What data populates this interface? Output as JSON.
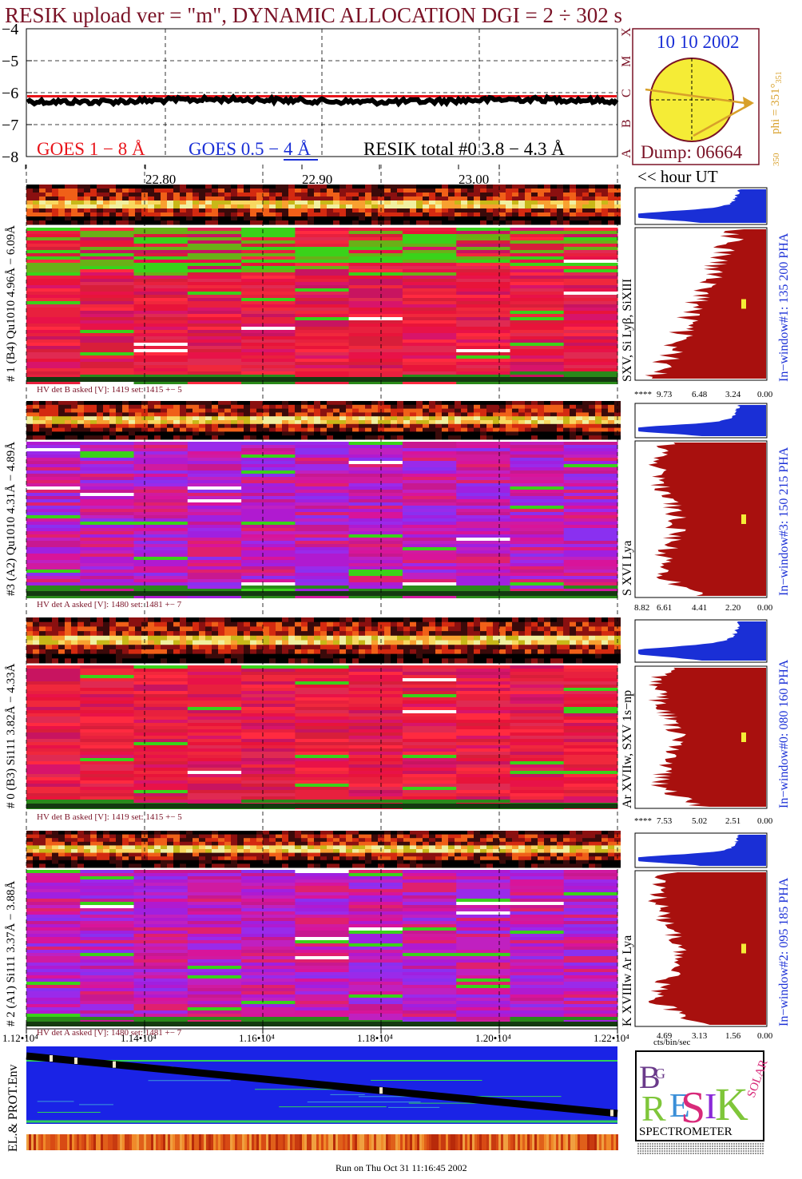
{
  "header": {
    "title": "RESIK upload ver = \"m\", DYNAMIC ALLOCATION  DGI =   2 ÷ 302 s"
  },
  "lightcurve": {
    "y_ticks": [
      "−4",
      "−5",
      "−6",
      "−7",
      "−8"
    ],
    "legend": {
      "goes_long": "GOES 1 − 8 Å",
      "goes_short": "GOES 0.5 − 4 Å",
      "resik": "RESIK total #0  3.8 − 4.3 Å"
    },
    "colors": {
      "goes_long": "#e8141a",
      "goes_short": "#1a2fd6",
      "resik": "#000000",
      "title": "#7a1226"
    }
  },
  "sun_panel": {
    "date": "10 10 2002",
    "dump": "Dump: 06664",
    "phi_label": "phi = 351°",
    "phi_sub": "351",
    "phi_low": "350",
    "class_letters": [
      "X",
      "M",
      "C",
      "B",
      "A"
    ]
  },
  "hour_axis": {
    "ticks": [
      "22.80",
      "22.90",
      "23.00"
    ],
    "label": "<< hour UT"
  },
  "detectors": [
    {
      "id": "det1",
      "ylabel": "# 1 (B4) Qu1010 4.96Å − 6.09Å",
      "line_label": "SXV, Si Lyβ, SiXIII",
      "window_label": "In−window#1:  135 200 PHA",
      "hv": "HV det B asked [V]:  1419 set:  1415 +−    5",
      "hist_ticks": [
        "****",
        "9.73",
        "6.48",
        "3.24",
        "0.00"
      ],
      "spec_base": "red"
    },
    {
      "id": "det3",
      "ylabel": "#3 (A2) Qu1010  4.31Å − 4.89Å",
      "line_label": "S XVI Lya",
      "window_label": "In−window#3:  150 215 PHA",
      "hv": "HV det A asked [V]:  1480 set:  1481 +−    7",
      "hist_ticks": [
        "8.82",
        "6.61",
        "4.41",
        "2.20",
        "0.00"
      ],
      "spec_base": "magenta"
    },
    {
      "id": "det0",
      "ylabel": "# 0 (B3) Si111  3.82Å − 4.33Å",
      "line_label": "Ar XVIIw,  SXV 1s−np",
      "window_label": "In−window#0:  080 160 PHA",
      "hv": "HV det B asked [V]:  1419 set:  1415 +−    5",
      "hist_ticks": [
        "****",
        "7.53",
        "5.02",
        "2.51",
        "0.00"
      ],
      "spec_base": "red"
    },
    {
      "id": "det2",
      "ylabel": "# 2 (A1) Si111  3.37Å − 3.88Å",
      "line_label": "K XVIIIw  Ar Lya",
      "window_label": "In−window#2:  095 185 PHA",
      "hv": "HV det A asked [V]:  1480 set:  1481 +−    7",
      "hist_ticks": [
        "4.69",
        "3.13",
        "1.56",
        "0.00"
      ],
      "spec_base": "magenta"
    }
  ],
  "time_axis": {
    "ticks": [
      "1.12•10⁴",
      "1.14•10⁴",
      "1.16•10⁴",
      "1.18•10⁴",
      "1.20•10⁴",
      "1.22•10⁴"
    ],
    "hist_unit": "cts/bin/sec"
  },
  "env": {
    "label": "EL.& PROT.Env"
  },
  "logo": {
    "letters": [
      "B",
      "R",
      "E",
      "S",
      "I",
      "K",
      "G",
      "SOLAR"
    ],
    "caption": "SPECTROMETER"
  },
  "footer": {
    "run": "Run on Thu Oct 31 11:16:45 2002"
  },
  "chart_data": {
    "type": "heatmap",
    "title": "RESIK upload ver = \"m\", DYNAMIC ALLOCATION  DGI =   2 ÷ 302 s",
    "x_hour_ticks": [
      22.8,
      22.9,
      23.0
    ],
    "x_seconds_ticks": [
      11200,
      11400,
      11600,
      11800,
      12000,
      12200
    ],
    "lightcurve_y_range": [
      -8,
      -4
    ],
    "series": [
      {
        "name": "GOES 1 − 8 Å",
        "level": -6.1
      },
      {
        "name": "RESIK total #0  3.8 − 4.3 Å",
        "level": -6.25
      }
    ],
    "histogram_ranges": [
      {
        "detector": "#1",
        "ticks": [
          9.73,
          6.48,
          3.24,
          0.0
        ]
      },
      {
        "detector": "#3",
        "ticks": [
          8.82,
          6.61,
          4.41,
          2.2,
          0.0
        ]
      },
      {
        "detector": "#0",
        "ticks": [
          7.53,
          5.02,
          2.51,
          0.0
        ]
      },
      {
        "detector": "#2",
        "ticks": [
          4.69,
          3.13,
          1.56,
          0.0
        ]
      }
    ]
  }
}
